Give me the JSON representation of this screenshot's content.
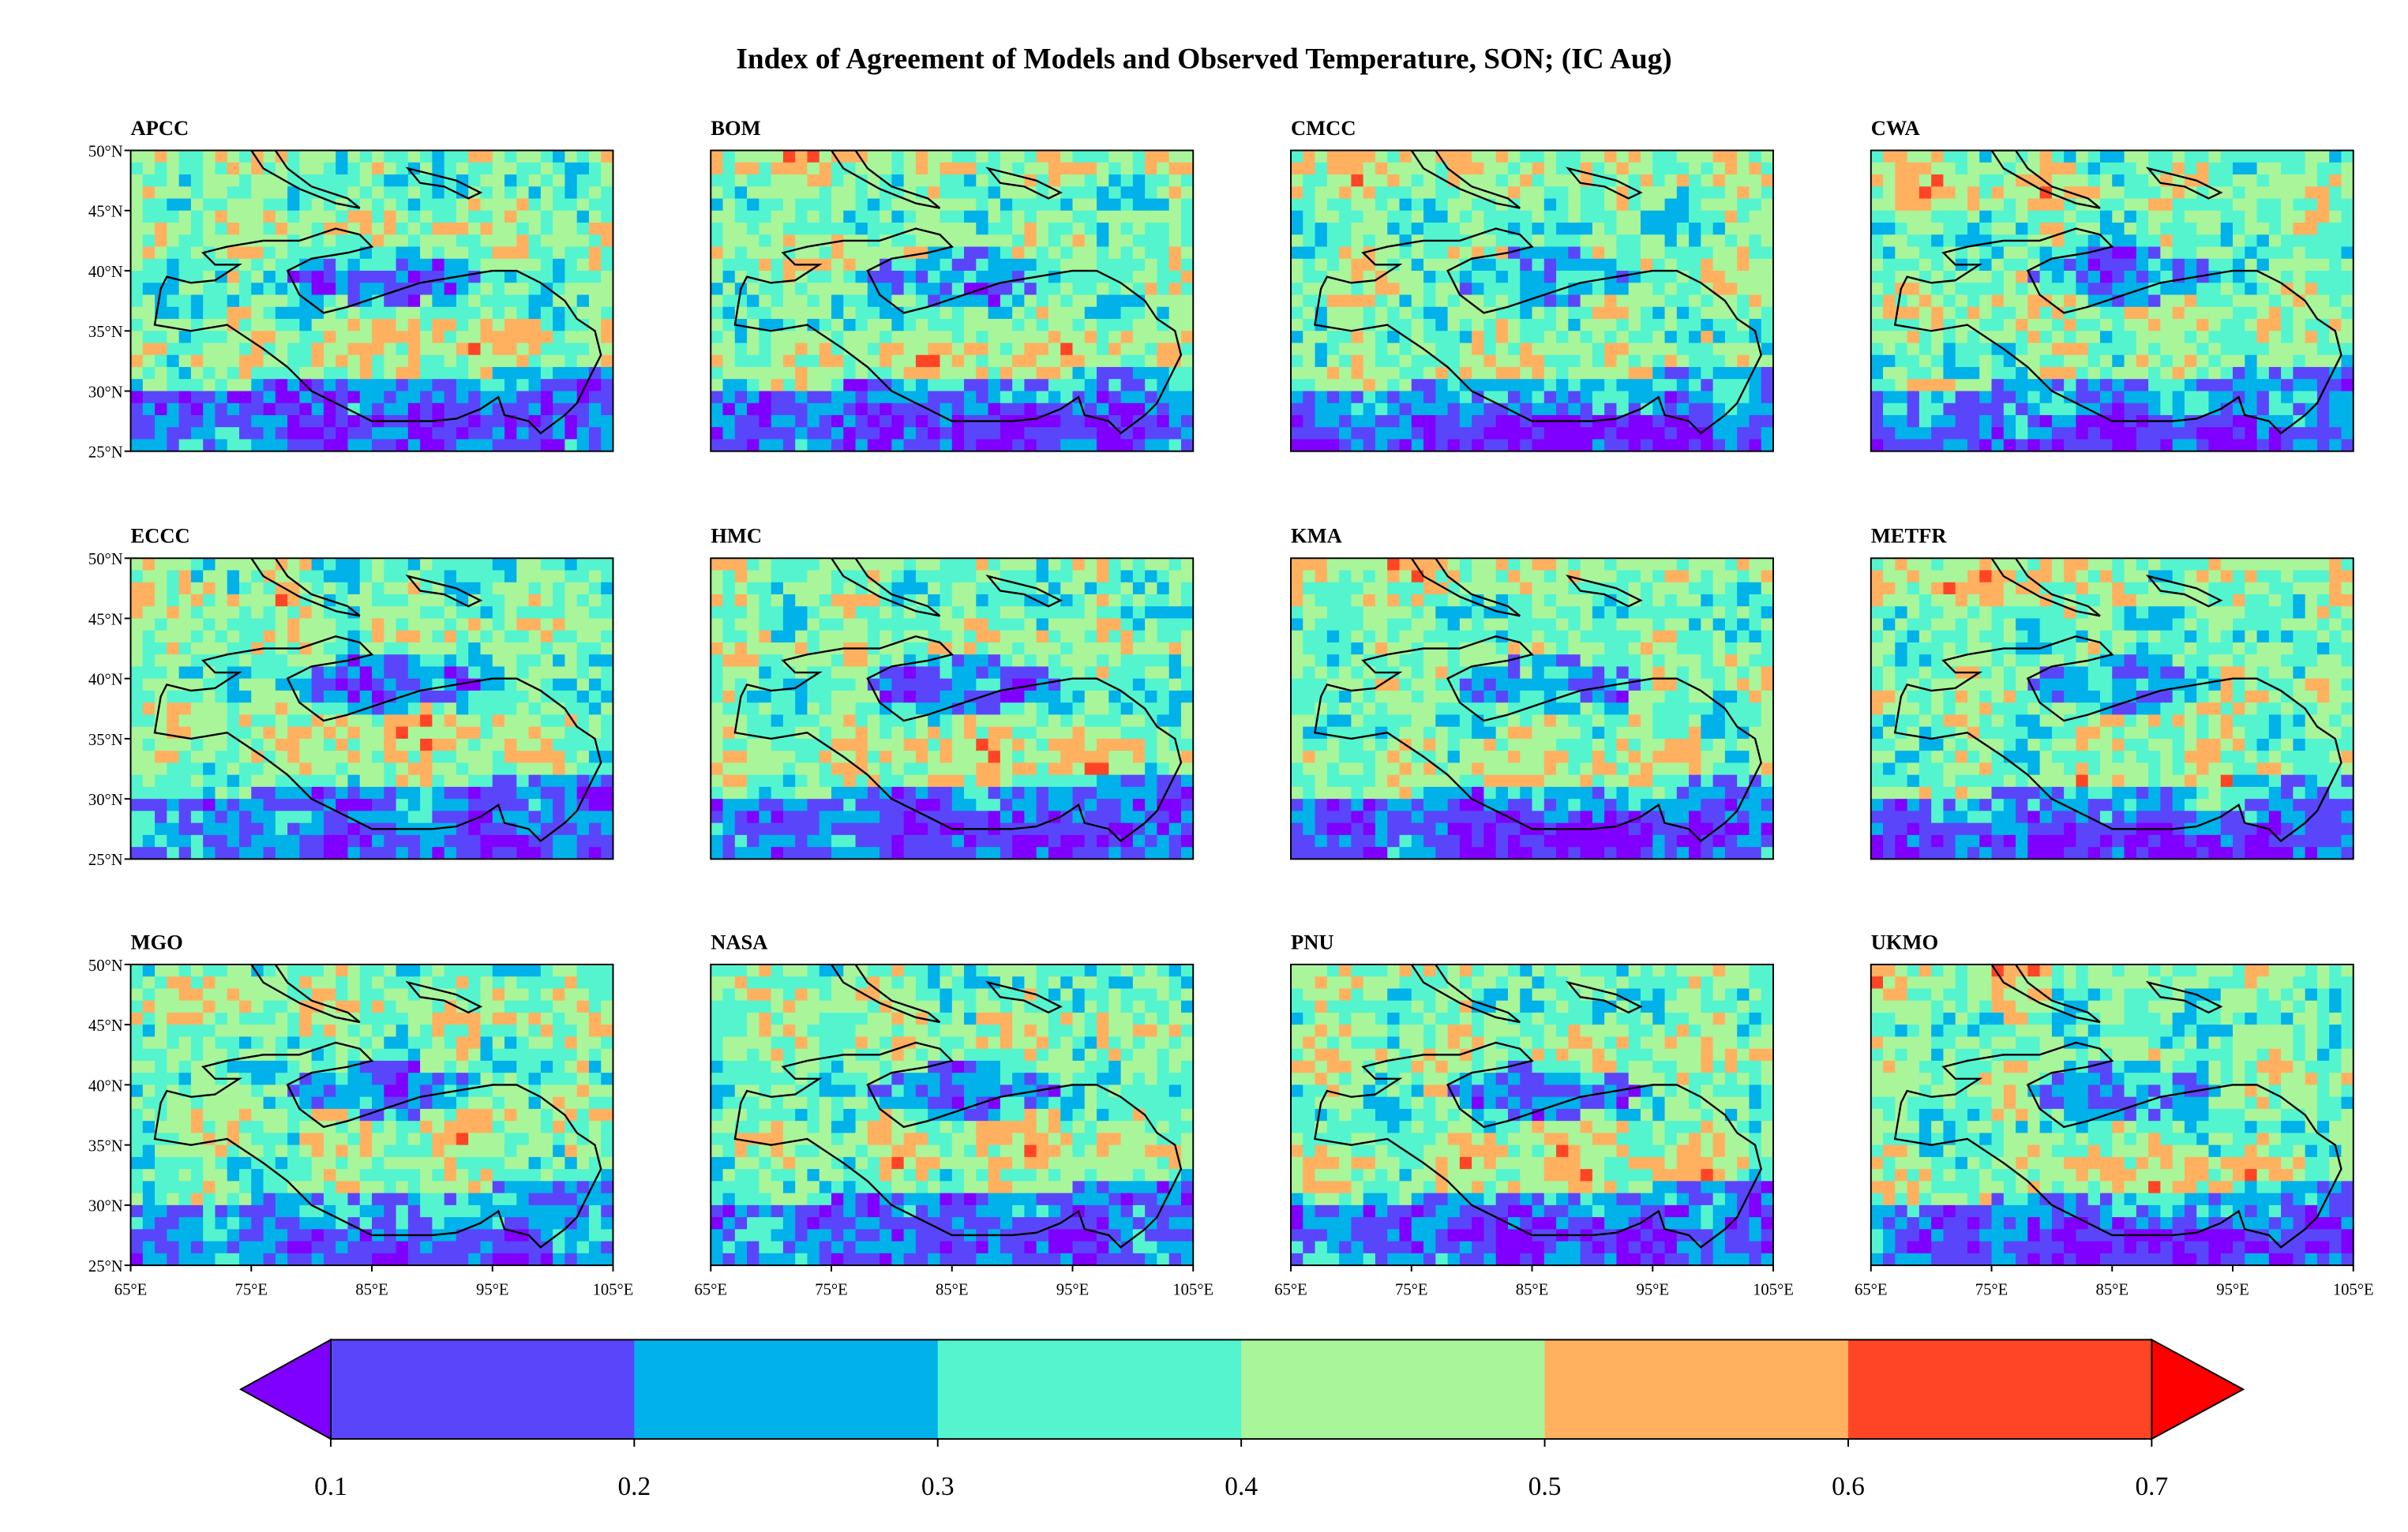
{
  "title": "Index of Agreement of Models and Observed Temperature, SON;  (IC  Aug)",
  "panels": [
    "APCC",
    "BOM",
    "CMCC",
    "CWA",
    "ECCC",
    "HMC",
    "KMA",
    "METFR",
    "MGO",
    "NASA",
    "PNU",
    "UKMO"
  ],
  "y_ticks": [
    "50°N",
    "45°N",
    "40°N",
    "35°N",
    "30°N",
    "25°N"
  ],
  "x_ticks": [
    "65°E",
    "75°E",
    "85°E",
    "95°E",
    "105°E"
  ],
  "lat_range": [
    25,
    50
  ],
  "lon_range": [
    65,
    105
  ],
  "colorbar": {
    "ticks": [
      "0.1",
      "0.2",
      "0.3",
      "0.4",
      "0.5",
      "0.6",
      "0.7"
    ],
    "extend": "both",
    "under_color": "#8000ff",
    "over_color": "#ff0000",
    "colors": [
      "#5a46fa",
      "#00b2e9",
      "#54f4cf",
      "#a9f59a",
      "#ffb160",
      "#ff4525"
    ]
  }
}
